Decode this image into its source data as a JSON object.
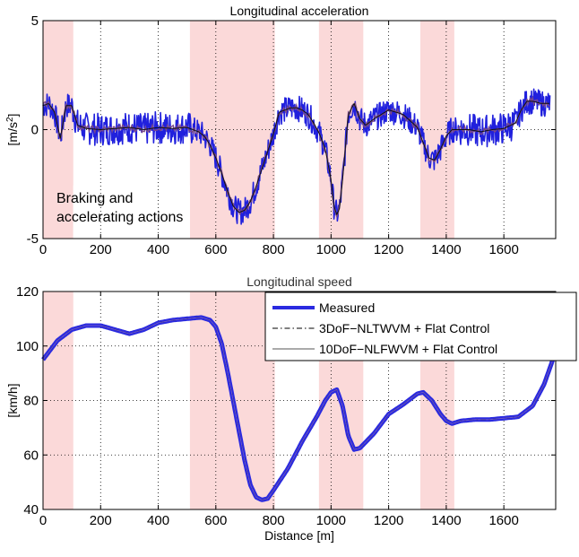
{
  "chart_data": [
    {
      "type": "line",
      "title": "Longitudinal acceleration",
      "xlabel": "",
      "ylabel": "[m/s²]",
      "ylabel_base": "[m/s",
      "ylabel_sup": "2",
      "ylabel_close": "]",
      "xlim": [
        0,
        1780
      ],
      "ylim": [
        -5,
        5
      ],
      "xticks": [
        0,
        200,
        400,
        600,
        800,
        1000,
        1200,
        1400,
        1600
      ],
      "yticks": [
        -5,
        0,
        5
      ],
      "grid": "dotted",
      "shaded_regions_x": [
        [
          0,
          105
        ],
        [
          510,
          805
        ],
        [
          958,
          1112
        ],
        [
          1310,
          1428
        ]
      ],
      "shade_color": "#fbd9d9",
      "annotation": {
        "lines": [
          "Braking and",
          "accelerating actions"
        ]
      },
      "series": [
        {
          "color": "#2020dd",
          "band": true,
          "x": [
            0,
            20,
            40,
            60,
            80,
            100,
            120,
            150,
            200,
            250,
            300,
            350,
            400,
            450,
            500,
            540,
            560,
            580,
            600,
            620,
            640,
            660,
            680,
            700,
            720,
            740,
            760,
            780,
            800,
            820,
            840,
            860,
            880,
            900,
            920,
            940,
            960,
            980,
            1000,
            1010,
            1020,
            1030,
            1040,
            1050,
            1060,
            1080,
            1100,
            1120,
            1150,
            1200,
            1250,
            1300,
            1320,
            1340,
            1360,
            1380,
            1400,
            1420,
            1440,
            1480,
            1520,
            1560,
            1600,
            1640,
            1660,
            1680,
            1700,
            1730,
            1760
          ],
          "values": [
            1.1,
            1.2,
            0.8,
            -0.4,
            1.1,
            1.1,
            0.2,
            0.05,
            0.0,
            0.05,
            0.1,
            0.0,
            0.1,
            0.05,
            0.1,
            -0.1,
            -0.3,
            -0.7,
            -1.3,
            -2.0,
            -2.8,
            -3.5,
            -3.8,
            -3.7,
            -3.3,
            -2.6,
            -1.8,
            -1.0,
            -0.2,
            0.8,
            0.9,
            1.0,
            1.0,
            0.9,
            0.7,
            0.3,
            -0.2,
            -0.9,
            -2.3,
            -3.5,
            -3.9,
            -3.6,
            -2.3,
            -0.8,
            0.7,
            1.2,
            0.5,
            0.2,
            0.5,
            0.9,
            0.7,
            0.1,
            -0.6,
            -1.3,
            -1.4,
            -0.9,
            -0.3,
            0.0,
            0.0,
            0.0,
            -0.1,
            0.0,
            0.05,
            0.3,
            0.9,
            1.3,
            1.3,
            1.2,
            1.2
          ]
        },
        {
          "color": "#111111",
          "x": [
            0,
            20,
            40,
            60,
            80,
            100,
            120,
            150,
            200,
            250,
            300,
            350,
            400,
            450,
            500,
            540,
            560,
            580,
            600,
            620,
            640,
            660,
            680,
            700,
            720,
            740,
            760,
            780,
            800,
            820,
            840,
            860,
            880,
            900,
            920,
            940,
            960,
            980,
            1000,
            1010,
            1020,
            1030,
            1040,
            1050,
            1060,
            1080,
            1100,
            1120,
            1150,
            1200,
            1250,
            1300,
            1320,
            1340,
            1360,
            1380,
            1400,
            1420,
            1440,
            1480,
            1520,
            1560,
            1600,
            1640,
            1660,
            1680,
            1700,
            1730,
            1760
          ],
          "values": [
            1.1,
            1.2,
            0.8,
            -0.4,
            1.1,
            1.1,
            0.2,
            0.05,
            0.0,
            0.05,
            0.1,
            0.0,
            0.1,
            0.05,
            0.1,
            -0.1,
            -0.3,
            -0.7,
            -1.3,
            -2.0,
            -2.8,
            -3.5,
            -3.8,
            -3.7,
            -3.3,
            -2.6,
            -1.8,
            -1.0,
            -0.2,
            0.8,
            0.9,
            1.0,
            1.0,
            0.9,
            0.7,
            0.3,
            -0.2,
            -0.9,
            -2.3,
            -3.5,
            -3.9,
            -3.6,
            -2.3,
            -0.8,
            0.7,
            1.2,
            0.5,
            0.2,
            0.5,
            0.9,
            0.7,
            0.1,
            -0.6,
            -1.3,
            -1.4,
            -0.9,
            -0.3,
            0.0,
            0.0,
            0.0,
            -0.1,
            0.0,
            0.05,
            0.3,
            0.9,
            1.3,
            1.3,
            1.2,
            1.2
          ]
        }
      ]
    },
    {
      "type": "line",
      "title": "Longitudinal speed",
      "xlabel": "Distance [m]",
      "ylabel": "[km/h]",
      "xlim": [
        0,
        1780
      ],
      "ylim": [
        40,
        120
      ],
      "xticks": [
        0,
        200,
        400,
        600,
        800,
        1000,
        1200,
        1400,
        1600
      ],
      "yticks": [
        40,
        60,
        80,
        100,
        120
      ],
      "grid": "dotted",
      "shaded_regions_x": [
        [
          0,
          105
        ],
        [
          510,
          805
        ],
        [
          958,
          1112
        ],
        [
          1310,
          1428
        ]
      ],
      "shade_color": "#fbd9d9",
      "legend_position": "top-right",
      "series": [
        {
          "name": "Measured",
          "color": "#2a2ae0",
          "style": "solid-thick",
          "x": [
            0,
            50,
            100,
            150,
            200,
            250,
            300,
            350,
            400,
            450,
            500,
            550,
            580,
            600,
            620,
            640,
            660,
            680,
            700,
            720,
            740,
            760,
            780,
            800,
            850,
            900,
            950,
            980,
            1000,
            1020,
            1040,
            1060,
            1080,
            1100,
            1150,
            1200,
            1250,
            1300,
            1320,
            1350,
            1380,
            1400,
            1420,
            1450,
            1500,
            1550,
            1600,
            1650,
            1700,
            1740,
            1770
          ],
          "values": [
            95,
            102,
            106,
            107.5,
            107.5,
            106,
            104.5,
            106,
            108.5,
            109.5,
            110,
            110.5,
            109.5,
            107,
            101,
            91,
            80,
            69,
            58,
            49,
            44.5,
            43.5,
            44,
            47,
            55,
            65,
            74,
            80,
            83,
            84,
            78,
            67,
            62,
            62.5,
            68,
            75,
            78.5,
            82.5,
            83,
            80,
            75,
            72.5,
            71.5,
            72.5,
            73,
            73,
            73.5,
            74,
            78,
            86,
            95
          ]
        },
        {
          "name": "3DoF−NLTWVM + Flat Control",
          "color": "#000000",
          "style": "dash-dot",
          "x": [
            0,
            50,
            100,
            150,
            200,
            250,
            300,
            350,
            400,
            450,
            500,
            550,
            580,
            600,
            620,
            640,
            660,
            680,
            700,
            720,
            740,
            760,
            780,
            800,
            850,
            900,
            950,
            980,
            1000,
            1020,
            1040,
            1060,
            1080,
            1100,
            1150,
            1200,
            1250,
            1300,
            1320,
            1350,
            1380,
            1400,
            1420,
            1450,
            1500,
            1550,
            1600,
            1650,
            1700,
            1740,
            1770
          ],
          "values": [
            95,
            102,
            106,
            107.5,
            107.5,
            106,
            104.5,
            106,
            108.5,
            109.5,
            110,
            110.5,
            109.5,
            107,
            101,
            91,
            80,
            69,
            58,
            49,
            44.5,
            43.5,
            44,
            47,
            55,
            65,
            74,
            80,
            83,
            84,
            78,
            67,
            62,
            62.5,
            68,
            75,
            78.5,
            82.5,
            83,
            80,
            75,
            72.5,
            71.5,
            72.5,
            73,
            73,
            73.5,
            74,
            78,
            86,
            95
          ]
        },
        {
          "name": "10DoF−NLFWVM + Flat Control",
          "color": "#555555",
          "style": "solid-thin",
          "x": [
            0,
            50,
            100,
            150,
            200,
            250,
            300,
            350,
            400,
            450,
            500,
            550,
            580,
            600,
            620,
            640,
            660,
            680,
            700,
            720,
            740,
            760,
            780,
            800,
            850,
            900,
            950,
            980,
            1000,
            1020,
            1040,
            1060,
            1080,
            1100,
            1150,
            1200,
            1250,
            1300,
            1320,
            1350,
            1380,
            1400,
            1420,
            1450,
            1500,
            1550,
            1600,
            1650,
            1700,
            1740,
            1770
          ],
          "values": [
            95,
            102,
            106,
            107.5,
            107.5,
            106,
            104.5,
            106,
            108.5,
            109.5,
            110,
            110.5,
            109.5,
            107,
            101,
            91,
            80,
            69,
            58,
            49,
            44.5,
            43.5,
            44,
            47,
            55,
            65,
            74,
            80,
            83,
            84,
            78,
            67,
            62,
            62.5,
            68,
            75,
            78.5,
            82.5,
            83,
            80,
            75,
            72.5,
            71.5,
            72.5,
            73,
            73,
            73.5,
            74,
            78,
            86,
            95
          ]
        }
      ]
    }
  ]
}
